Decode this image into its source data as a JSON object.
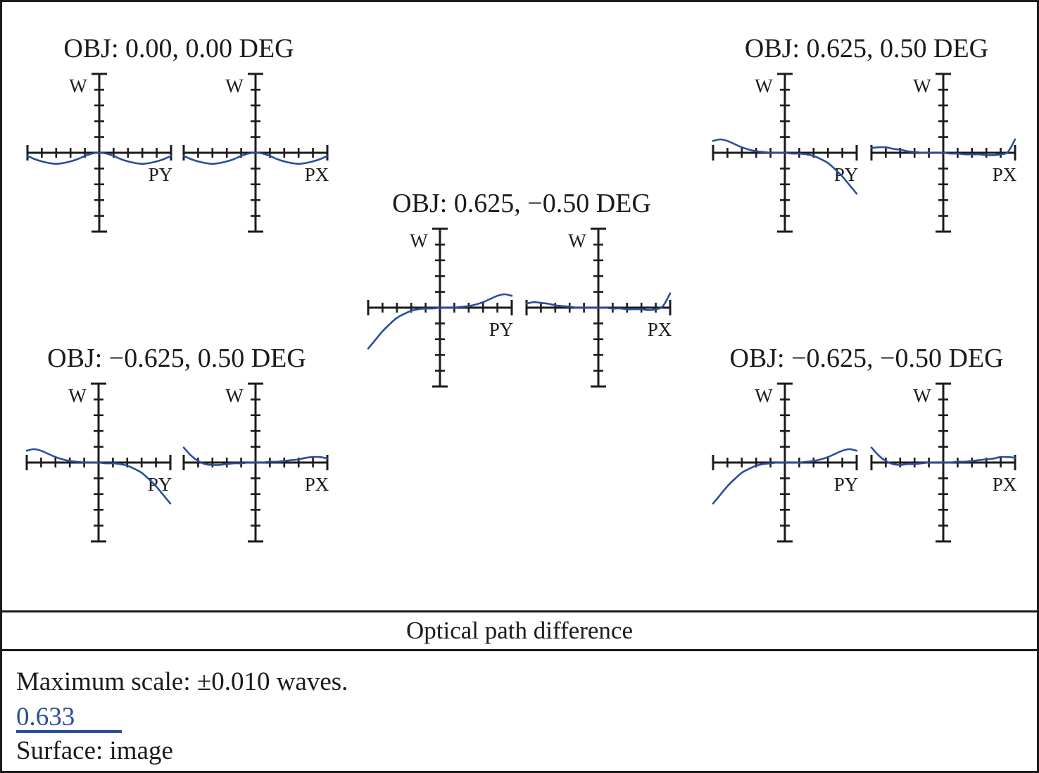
{
  "figure": {
    "caption": "Optical path difference",
    "footer": {
      "max_scale_label": "Maximum scale: ±0.010 waves.",
      "wavelength": "0.633",
      "surface_label": "Surface: image"
    },
    "colors": {
      "ink": "#1b1b1b",
      "curve_blue": "#2b4d9b"
    }
  },
  "chart_data": {
    "type": "line",
    "title": "Optical path difference",
    "description": "Optical path difference fan plots, wavefront error W versus normalized pupil coordinate (PY tangential, PX sagittal), for five field points",
    "y_label": "W",
    "max_scale_waves": 0.01,
    "y_range": [
      -0.01,
      0.01
    ],
    "x_range": [
      -1,
      1
    ],
    "divisions_per_half_axis": 5,
    "wavelength_label": "0.633",
    "surface": "image",
    "grid": false,
    "pupil_x": [
      -1,
      -0.9,
      -0.8,
      -0.7,
      -0.6,
      -0.5,
      -0.4,
      -0.3,
      -0.2,
      -0.1,
      0,
      0.1,
      0.2,
      0.3,
      0.4,
      0.5,
      0.6,
      0.7,
      0.8,
      0.9,
      1
    ],
    "panels": [
      {
        "label": "OBJ: 0.00, 0.00 DEG",
        "obj_deg": [
          0.0,
          0.0
        ],
        "fans": [
          {
            "x_label": "PY",
            "w_waves": [
              -0.0004,
              -0.0008,
              -0.0011,
              -0.0013,
              -0.0014,
              -0.0013,
              -0.0011,
              -0.0008,
              -0.0004,
              -0.0001,
              0,
              -0.0001,
              -0.0004,
              -0.0008,
              -0.0011,
              -0.0013,
              -0.0014,
              -0.0013,
              -0.0011,
              -0.0008,
              -0.0004
            ]
          },
          {
            "x_label": "PX",
            "w_waves": [
              -0.0004,
              -0.0008,
              -0.0011,
              -0.0013,
              -0.0014,
              -0.0013,
              -0.0011,
              -0.0008,
              -0.0004,
              -0.0001,
              0,
              -0.0001,
              -0.0004,
              -0.0008,
              -0.0011,
              -0.0013,
              -0.0014,
              -0.0013,
              -0.0011,
              -0.0008,
              -0.0004
            ]
          }
        ]
      },
      {
        "label": "OBJ: 0.625, 0.50 DEG",
        "obj_deg": [
          0.625,
          0.5
        ],
        "fans": [
          {
            "x_label": "PY",
            "w_waves": [
              0.0015,
              0.0017,
              0.0015,
              0.0011,
              0.0007,
              0.0004,
              0.0002,
              0.0001,
              0,
              0,
              0,
              -0.0001,
              -0.0001,
              -0.0002,
              -0.0004,
              -0.0008,
              -0.0013,
              -0.0021,
              -0.003,
              -0.0041,
              -0.0052
            ]
          },
          {
            "x_label": "PX",
            "w_waves": [
              0.0006,
              0.0007,
              0.0007,
              0.0005,
              0.0004,
              0.0002,
              0.0001,
              0,
              0,
              0,
              0,
              -0.0001,
              -0.0001,
              -0.0002,
              -0.0002,
              -0.0002,
              -0.0003,
              -0.0003,
              -0.0002,
              0.0001,
              0.0017
            ]
          }
        ]
      },
      {
        "label": "OBJ: 0.625, −0.50 DEG",
        "obj_deg": [
          0.625,
          -0.5
        ],
        "fans": [
          {
            "x_label": "PY",
            "w_waves": [
              -0.0052,
              -0.0041,
              -0.003,
              -0.0021,
              -0.0013,
              -0.0008,
              -0.0004,
              -0.0002,
              -0.0001,
              -0.0001,
              0,
              0,
              0,
              0.0001,
              0.0002,
              0.0004,
              0.0007,
              0.0011,
              0.0015,
              0.0017,
              0.0015
            ]
          },
          {
            "x_label": "PX",
            "w_waves": [
              0.0005,
              0.0007,
              0.0006,
              0.0005,
              0.0003,
              0.0002,
              0.0001,
              0,
              0,
              0,
              0,
              0,
              -0.0001,
              -0.0001,
              -0.0002,
              -0.0002,
              -0.0002,
              -0.0003,
              -0.0002,
              0.0002,
              0.0018
            ]
          }
        ]
      },
      {
        "label": "OBJ: −0.625, 0.50 DEG",
        "obj_deg": [
          -0.625,
          0.5
        ],
        "fans": [
          {
            "x_label": "PY",
            "w_waves": [
              0.0015,
              0.0017,
              0.0015,
              0.0011,
              0.0007,
              0.0004,
              0.0002,
              0.0001,
              0,
              0,
              0,
              -0.0001,
              -0.0001,
              -0.0002,
              -0.0004,
              -0.0008,
              -0.0013,
              -0.0021,
              -0.003,
              -0.0041,
              -0.0052
            ]
          },
          {
            "x_label": "PX",
            "w_waves": [
              0.0019,
              0.0009,
              0.0002,
              -0.0002,
              -0.0003,
              -0.0003,
              -0.0002,
              -0.0001,
              -0.0001,
              0,
              0,
              0,
              0.0001,
              0.0001,
              0.0002,
              0.0003,
              0.0004,
              0.0006,
              0.0007,
              0.0007,
              0.0005
            ]
          }
        ]
      },
      {
        "label": "OBJ: −0.625, −0.50 DEG",
        "obj_deg": [
          -0.625,
          -0.5
        ],
        "fans": [
          {
            "x_label": "PY",
            "w_waves": [
              -0.0052,
              -0.0041,
              -0.003,
              -0.0021,
              -0.0013,
              -0.0008,
              -0.0004,
              -0.0002,
              -0.0001,
              0,
              0,
              0,
              0,
              0.0001,
              0.0002,
              0.0004,
              0.0007,
              0.0011,
              0.0015,
              0.0017,
              0.0015
            ]
          },
          {
            "x_label": "PX",
            "w_waves": [
              0.0019,
              0.0009,
              0.0002,
              -0.0002,
              -0.0003,
              -0.0002,
              -0.0002,
              -0.0001,
              0,
              0,
              0,
              0,
              0.0001,
              0.0001,
              0.0002,
              0.0003,
              0.0004,
              0.0005,
              0.0007,
              0.0007,
              0.0006
            ]
          }
        ]
      }
    ]
  }
}
